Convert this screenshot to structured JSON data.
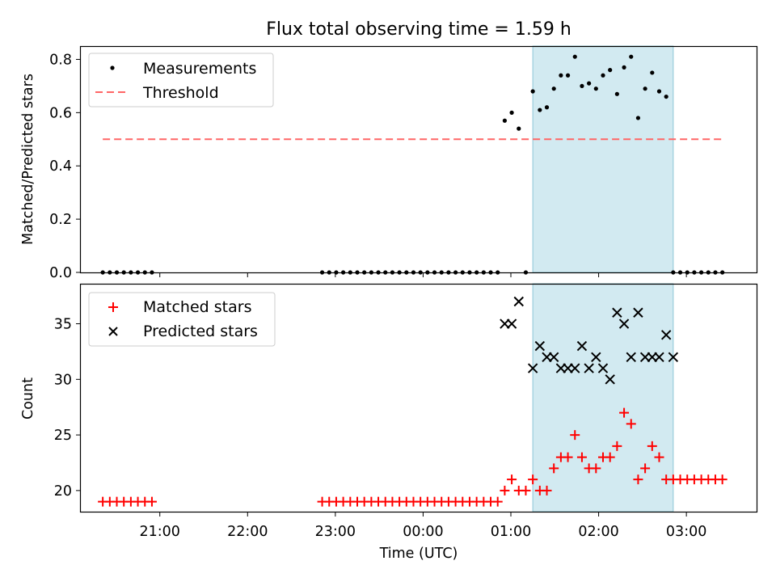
{
  "figure": {
    "title": "Flux total observing time = 1.59 h",
    "xlabel": "Time (UTC)",
    "xticks": [
      {
        "t": 21.0,
        "label": "21:00"
      },
      {
        "t": 22.0,
        "label": "22:00"
      },
      {
        "t": 23.0,
        "label": "23:00"
      },
      {
        "t": 24.0,
        "label": "00:00"
      },
      {
        "t": 25.0,
        "label": "01:00"
      },
      {
        "t": 26.0,
        "label": "02:00"
      },
      {
        "t": 27.0,
        "label": "03:00"
      }
    ],
    "xlim": [
      20.1,
      27.8
    ],
    "highlight_span": [
      25.25,
      26.85
    ],
    "colors": {
      "highlight": "#add8e6",
      "threshold": "#ff6666",
      "matched": "#ff0000",
      "predicted": "#000000",
      "measurement": "#000000"
    }
  },
  "chart_data": [
    {
      "type": "scatter",
      "ylabel": "Matched/Predicted stars",
      "ylim": [
        0,
        0.85
      ],
      "yticks": [
        0.0,
        0.2,
        0.4,
        0.6,
        0.8
      ],
      "ytick_labels": [
        "0.0",
        "0.2",
        "0.4",
        "0.6",
        "0.8"
      ],
      "legend_position": "upper-left",
      "legend": [
        "Measurements",
        "Threshold"
      ],
      "series": [
        {
          "name": "Measurements",
          "style": "dot",
          "x": [
            20.35,
            20.43,
            20.51,
            20.59,
            20.67,
            20.75,
            20.83,
            20.91,
            22.85,
            22.93,
            23.01,
            23.09,
            23.17,
            23.25,
            23.33,
            23.41,
            23.49,
            23.57,
            23.65,
            23.73,
            23.81,
            23.89,
            23.97,
            24.05,
            24.13,
            24.21,
            24.29,
            24.37,
            24.45,
            24.53,
            24.61,
            24.69,
            24.77,
            24.85,
            24.93,
            25.01,
            25.09,
            25.17,
            25.25,
            25.33,
            25.41,
            25.49,
            25.57,
            25.65,
            25.73,
            25.81,
            25.89,
            25.97,
            26.05,
            26.13,
            26.21,
            26.29,
            26.37,
            26.45,
            26.53,
            26.61,
            26.69,
            26.77,
            26.85,
            26.93,
            27.01,
            27.09,
            27.17,
            27.25,
            27.33,
            27.41
          ],
          "y": [
            0,
            0,
            0,
            0,
            0,
            0,
            0,
            0,
            0,
            0,
            0,
            0,
            0,
            0,
            0,
            0,
            0,
            0,
            0,
            0,
            0,
            0,
            0,
            0,
            0,
            0,
            0,
            0,
            0,
            0,
            0,
            0,
            0,
            0,
            0.57,
            0.6,
            0.54,
            0,
            0.68,
            0.61,
            0.62,
            0.69,
            0.74,
            0.74,
            0.81,
            0.7,
            0.71,
            0.69,
            0.74,
            0.76,
            0.67,
            0.77,
            0.81,
            0.58,
            0.69,
            0.75,
            0.68,
            0.66,
            0,
            0,
            0,
            0,
            0,
            0,
            0,
            0
          ]
        },
        {
          "name": "Threshold",
          "style": "dashed-line",
          "x": [
            20.35,
            27.41
          ],
          "y": [
            0.5,
            0.5
          ]
        }
      ]
    },
    {
      "type": "scatter",
      "ylabel": "Count",
      "ylim": [
        18.1,
        38.6
      ],
      "yticks": [
        20,
        25,
        30,
        35
      ],
      "ytick_labels": [
        "20",
        "25",
        "30",
        "35"
      ],
      "legend_position": "upper-left",
      "legend": [
        "Matched stars",
        "Predicted stars"
      ],
      "series": [
        {
          "name": "Matched stars",
          "style": "plus",
          "x": [
            20.35,
            20.43,
            20.51,
            20.59,
            20.67,
            20.75,
            20.83,
            20.91,
            22.85,
            22.93,
            23.01,
            23.09,
            23.17,
            23.25,
            23.33,
            23.41,
            23.49,
            23.57,
            23.65,
            23.73,
            23.81,
            23.89,
            23.97,
            24.05,
            24.13,
            24.21,
            24.29,
            24.37,
            24.45,
            24.53,
            24.61,
            24.69,
            24.77,
            24.85,
            24.93,
            25.01,
            25.09,
            25.17,
            25.25,
            25.33,
            25.41,
            25.49,
            25.57,
            25.65,
            25.73,
            25.81,
            25.89,
            25.97,
            26.05,
            26.13,
            26.21,
            26.29,
            26.37,
            26.45,
            26.53,
            26.61,
            26.69,
            26.77,
            26.85,
            26.93,
            27.01,
            27.09,
            27.17,
            27.25,
            27.33,
            27.41
          ],
          "y": [
            19,
            19,
            19,
            19,
            19,
            19,
            19,
            19,
            19,
            19,
            19,
            19,
            19,
            19,
            19,
            19,
            19,
            19,
            19,
            19,
            19,
            19,
            19,
            19,
            19,
            19,
            19,
            19,
            19,
            19,
            19,
            19,
            19,
            19,
            20,
            21,
            20,
            20,
            21,
            20,
            20,
            22,
            23,
            23,
            25,
            23,
            22,
            22,
            23,
            23,
            24,
            27,
            26,
            21,
            22,
            24,
            23,
            21,
            21,
            21,
            21,
            21,
            21,
            21,
            21,
            21
          ]
        },
        {
          "name": "Predicted stars",
          "style": "x",
          "x": [
            24.93,
            25.01,
            25.09,
            25.25,
            25.33,
            25.41,
            25.49,
            25.57,
            25.65,
            25.73,
            25.81,
            25.89,
            25.97,
            26.05,
            26.13,
            26.21,
            26.29,
            26.37,
            26.45,
            26.53,
            26.61,
            26.69,
            26.77,
            26.85
          ],
          "y": [
            35,
            35,
            37,
            31,
            33,
            32,
            32,
            31,
            31,
            31,
            33,
            31,
            32,
            31,
            30,
            36,
            35,
            32,
            36,
            32,
            32,
            32,
            34,
            32
          ]
        }
      ]
    }
  ]
}
